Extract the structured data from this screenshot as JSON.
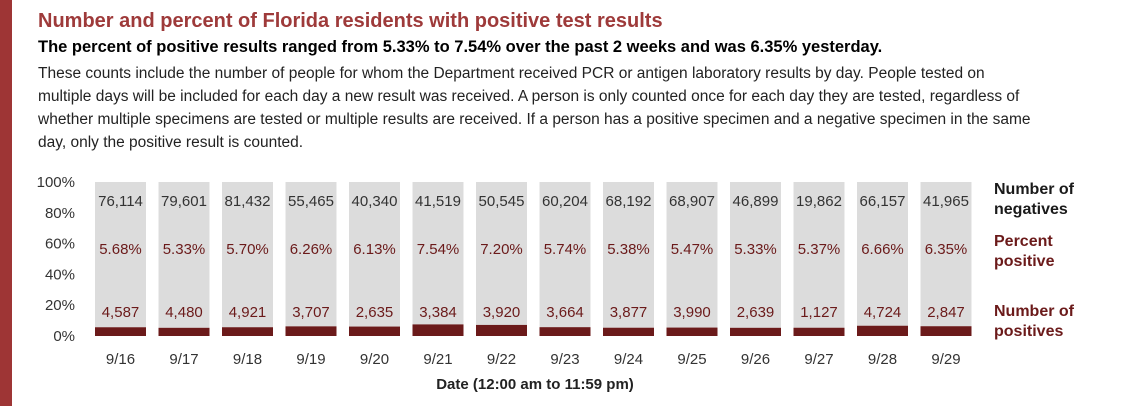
{
  "header": {
    "title": "Number and percent of Florida residents with positive test results",
    "subtitle": "The percent of positive results ranged from 5.33% to 7.54% over the past 2 weeks and was 6.35% yesterday.",
    "description": "These counts include the number of people for whom the Department received PCR or antigen laboratory results by day. People tested on multiple days will be included for each day a new result was received. A person is only counted once for each day they are tested, regardless of whether multiple specimens are tested or multiple results are received. If a person has a positive specimen and a negative specimen in the same day, only the positive result is counted."
  },
  "right_labels": {
    "negatives": [
      "Number of",
      "negatives"
    ],
    "percent": [
      "Percent",
      "positive"
    ],
    "positives": [
      "Number of",
      "positives"
    ]
  },
  "colors": {
    "accent": "#9e3535",
    "negatives_bar": "#dcdcdc",
    "positives_bar": "#6b1a1a",
    "negatives_label": "#333333",
    "percent_label": "#6b1a1a",
    "positives_label": "#6b1a1a"
  },
  "chart_data": {
    "type": "bar",
    "stacked": "percent",
    "xlabel": "Date (12:00 am to 11:59 pm)",
    "ylabel": "",
    "ylim": [
      0,
      100
    ],
    "yticks": [
      "0%",
      "20%",
      "40%",
      "60%",
      "80%",
      "100%"
    ],
    "categories": [
      "9/16",
      "9/17",
      "9/18",
      "9/19",
      "9/20",
      "9/21",
      "9/22",
      "9/23",
      "9/24",
      "9/25",
      "9/26",
      "9/27",
      "9/28",
      "9/29"
    ],
    "series": [
      {
        "name": "Number of negatives",
        "values": [
          76114,
          79601,
          81432,
          55465,
          40340,
          41519,
          50545,
          60204,
          68192,
          68907,
          46899,
          19862,
          66157,
          41965
        ]
      },
      {
        "name": "Number of positives",
        "values": [
          4587,
          4480,
          4921,
          3707,
          2635,
          3384,
          3920,
          3664,
          3877,
          3990,
          2639,
          1127,
          4724,
          2847
        ]
      }
    ],
    "percent_positive": [
      "5.68%",
      "5.33%",
      "5.70%",
      "6.26%",
      "6.13%",
      "7.54%",
      "7.20%",
      "5.74%",
      "5.38%",
      "5.47%",
      "5.33%",
      "5.37%",
      "6.66%",
      "6.35%"
    ],
    "grid": false,
    "legend": "right"
  }
}
